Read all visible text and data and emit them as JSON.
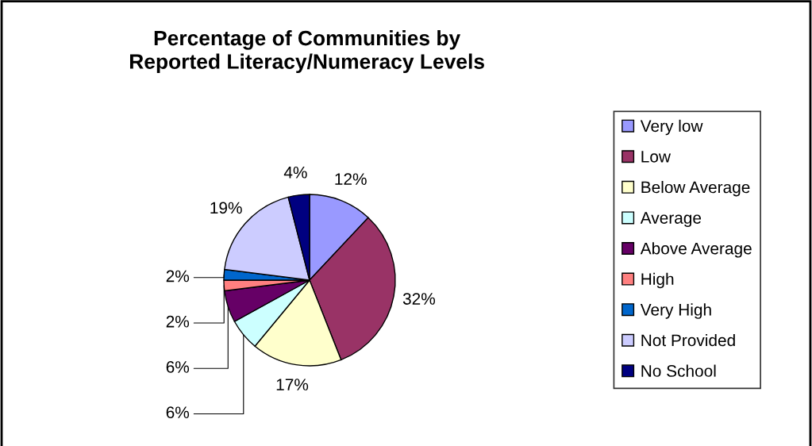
{
  "chart_data": {
    "type": "pie",
    "title": "Percentage of Communities by\nReported Literacy/Numeracy Levels",
    "categories": [
      "Very low",
      "Low",
      "Below Average",
      "Average",
      "Above Average",
      "High",
      "Very High",
      "Not Provided",
      "No School"
    ],
    "values": [
      12,
      32,
      17,
      6,
      6,
      2,
      2,
      19,
      4
    ],
    "colors": [
      "#9999ff",
      "#993366",
      "#ffffcc",
      "#ccffff",
      "#660066",
      "#ff8080",
      "#0066cc",
      "#ccccff",
      "#000080"
    ],
    "value_labels": [
      "12%",
      "32%",
      "17%",
      "6%",
      "6%",
      "2%",
      "2%",
      "19%",
      "4%"
    ],
    "legend": "right"
  }
}
